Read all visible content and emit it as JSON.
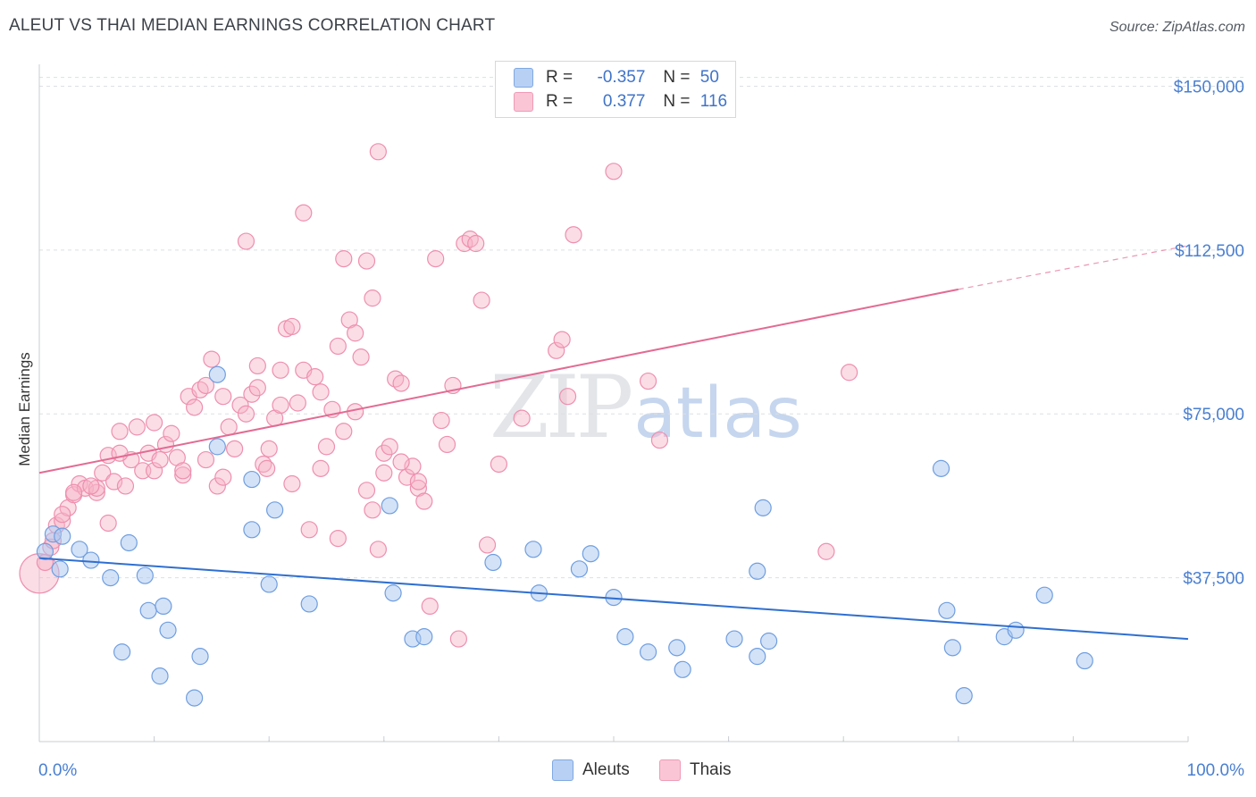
{
  "header": {
    "title": "ALEUT VS THAI MEDIAN EARNINGS CORRELATION CHART",
    "source": "Source: ZipAtlas.com"
  },
  "watermark": {
    "zip": "ZIP",
    "atlas": "atlas"
  },
  "legend": {
    "aleut": {
      "r_label": "R =",
      "r_value": "-0.357",
      "n_label": "N =",
      "n_value": "50",
      "color": "#a8c6f0"
    },
    "thai": {
      "r_label": "R =",
      "r_value": "0.377",
      "n_label": "N =",
      "n_value": "116",
      "color": "#f7b3c8"
    }
  },
  "bottom_legend": {
    "aleut_label": "Aleuts",
    "thai_label": "Thais"
  },
  "colors": {
    "aleut_fill": "#a8c6f0",
    "aleut_stroke": "#6f9ee0",
    "aleut_line": "#2f6fd0",
    "thai_fill": "#f7b3c8",
    "thai_stroke": "#ee8fae",
    "thai_line": "#e36b93",
    "grid": "#dcdfe3",
    "tick_text": "#4a7fd1"
  },
  "chart_data": {
    "type": "scatter",
    "title": "ALEUT VS THAI MEDIAN EARNINGS CORRELATION CHART",
    "xlabel": "",
    "ylabel": "Median Earnings",
    "xlim": [
      0,
      100
    ],
    "ylim": [
      0,
      155000
    ],
    "x_tick_labels": [
      "0.0%",
      "100.0%"
    ],
    "y_ticks": [
      37500,
      75000,
      112500,
      150000
    ],
    "y_tick_labels": [
      "$37,500",
      "$75,000",
      "$112,500",
      "$150,000"
    ],
    "grid": true,
    "legend_position": "top-center",
    "series": [
      {
        "name": "Aleuts",
        "trend": {
          "x": [
            0,
            100
          ],
          "y": [
            42000,
            23500
          ]
        },
        "points": [
          [
            0.5,
            43500
          ],
          [
            1.2,
            47500
          ],
          [
            2.0,
            47000
          ],
          [
            3.5,
            44000
          ],
          [
            1.8,
            39500
          ],
          [
            4.5,
            41500
          ],
          [
            6.2,
            37500
          ],
          [
            7.8,
            45500
          ],
          [
            9.5,
            30000
          ],
          [
            9.2,
            38000
          ],
          [
            7.2,
            20500
          ],
          [
            10.8,
            31000
          ],
          [
            11.2,
            25500
          ],
          [
            10.5,
            15000
          ],
          [
            14.0,
            19500
          ],
          [
            13.5,
            10000
          ],
          [
            15.5,
            84000
          ],
          [
            15.5,
            67500
          ],
          [
            18.5,
            60000
          ],
          [
            18.5,
            48500
          ],
          [
            20.5,
            53000
          ],
          [
            23.5,
            31500
          ],
          [
            30.5,
            54000
          ],
          [
            30.8,
            34000
          ],
          [
            32.5,
            23500
          ],
          [
            33.5,
            24000
          ],
          [
            39.5,
            41000
          ],
          [
            43.5,
            34000
          ],
          [
            47.0,
            39500
          ],
          [
            50.0,
            33000
          ],
          [
            51.0,
            24000
          ],
          [
            53.0,
            20500
          ],
          [
            55.5,
            21500
          ],
          [
            56.0,
            16500
          ],
          [
            60.5,
            23500
          ],
          [
            62.5,
            39000
          ],
          [
            63.0,
            53500
          ],
          [
            62.5,
            19500
          ],
          [
            63.5,
            23000
          ],
          [
            78.5,
            62500
          ],
          [
            79.0,
            30000
          ],
          [
            79.5,
            21500
          ],
          [
            80.5,
            10500
          ],
          [
            84.0,
            24000
          ],
          [
            85.0,
            25500
          ],
          [
            87.5,
            33500
          ],
          [
            91.0,
            18500
          ],
          [
            48.0,
            43000
          ],
          [
            43.0,
            44000
          ],
          [
            20.0,
            36000
          ]
        ]
      },
      {
        "name": "Thais",
        "trend": {
          "x": [
            0,
            80
          ],
          "y": [
            61500,
            103500
          ],
          "dashed_x": [
            80,
            100
          ],
          "dashed_y": [
            103500,
            113500
          ]
        },
        "points": [
          [
            0.0,
            38500
          ],
          [
            0.5,
            41000
          ],
          [
            1.0,
            44500
          ],
          [
            1.5,
            49500
          ],
          [
            2.0,
            50500
          ],
          [
            2.5,
            53500
          ],
          [
            3.0,
            56500
          ],
          [
            3.5,
            59000
          ],
          [
            4.0,
            58000
          ],
          [
            5.0,
            57000
          ],
          [
            5.5,
            61500
          ],
          [
            6.0,
            65500
          ],
          [
            6.5,
            59500
          ],
          [
            7.0,
            71000
          ],
          [
            7.5,
            58500
          ],
          [
            8.0,
            64500
          ],
          [
            8.5,
            72000
          ],
          [
            9.0,
            62000
          ],
          [
            9.5,
            66000
          ],
          [
            10.0,
            62000
          ],
          [
            10.5,
            64500
          ],
          [
            11.0,
            68000
          ],
          [
            11.5,
            70500
          ],
          [
            12.0,
            65000
          ],
          [
            12.5,
            61000
          ],
          [
            13.0,
            79000
          ],
          [
            13.5,
            76500
          ],
          [
            14.0,
            80500
          ],
          [
            14.5,
            64500
          ],
          [
            15.0,
            87500
          ],
          [
            15.5,
            58500
          ],
          [
            16.0,
            79000
          ],
          [
            16.5,
            72000
          ],
          [
            17.0,
            67000
          ],
          [
            17.5,
            77000
          ],
          [
            18.0,
            75000
          ],
          [
            18.5,
            79500
          ],
          [
            19.0,
            86000
          ],
          [
            19.5,
            63500
          ],
          [
            20.0,
            67000
          ],
          [
            20.5,
            74000
          ],
          [
            21.0,
            85000
          ],
          [
            21.5,
            94500
          ],
          [
            22.0,
            95000
          ],
          [
            22.5,
            77500
          ],
          [
            23.0,
            85000
          ],
          [
            23.5,
            48500
          ],
          [
            24.0,
            83500
          ],
          [
            24.5,
            80000
          ],
          [
            25.0,
            67500
          ],
          [
            26.0,
            90500
          ],
          [
            26.5,
            71000
          ],
          [
            27.0,
            96500
          ],
          [
            27.5,
            93500
          ],
          [
            28.0,
            88000
          ],
          [
            28.5,
            57500
          ],
          [
            29.0,
            53000
          ],
          [
            29.5,
            44000
          ],
          [
            30.0,
            66000
          ],
          [
            30.5,
            67500
          ],
          [
            31.0,
            83000
          ],
          [
            31.5,
            82000
          ],
          [
            32.0,
            60500
          ],
          [
            32.5,
            63000
          ],
          [
            33.0,
            58000
          ],
          [
            33.5,
            55000
          ],
          [
            34.0,
            31000
          ],
          [
            35.0,
            73500
          ],
          [
            36.0,
            81500
          ],
          [
            36.5,
            23500
          ],
          [
            37.0,
            114000
          ],
          [
            37.5,
            115000
          ],
          [
            38.0,
            114000
          ],
          [
            39.0,
            45000
          ],
          [
            40.0,
            63500
          ],
          [
            42.0,
            74000
          ],
          [
            45.0,
            89500
          ],
          [
            45.5,
            92000
          ],
          [
            46.0,
            79000
          ],
          [
            46.5,
            116000
          ],
          [
            50.0,
            130500
          ],
          [
            53.0,
            82500
          ],
          [
            54.0,
            69000
          ],
          [
            68.5,
            43500
          ],
          [
            70.5,
            84500
          ],
          [
            18.0,
            114500
          ],
          [
            23.0,
            121000
          ],
          [
            26.5,
            110500
          ],
          [
            28.5,
            110000
          ],
          [
            29.0,
            101500
          ],
          [
            34.5,
            110500
          ],
          [
            29.5,
            135000
          ],
          [
            38.5,
            101000
          ],
          [
            19.8,
            62500
          ],
          [
            22.0,
            59000
          ],
          [
            7.0,
            66000
          ],
          [
            5.0,
            58000
          ],
          [
            10.0,
            73000
          ],
          [
            6.0,
            50000
          ],
          [
            3.0,
            57000
          ],
          [
            24.5,
            62500
          ],
          [
            33.0,
            59500
          ],
          [
            12.5,
            62000
          ],
          [
            16.0,
            60500
          ],
          [
            21.0,
            77000
          ],
          [
            25.5,
            76000
          ],
          [
            31.5,
            64000
          ],
          [
            35.5,
            68000
          ],
          [
            26.0,
            46500
          ],
          [
            4.5,
            58500
          ],
          [
            2.0,
            52000
          ],
          [
            1.2,
            46000
          ],
          [
            14.5,
            81500
          ],
          [
            19.0,
            81000
          ],
          [
            27.5,
            75500
          ],
          [
            30.0,
            61500
          ]
        ]
      }
    ]
  }
}
